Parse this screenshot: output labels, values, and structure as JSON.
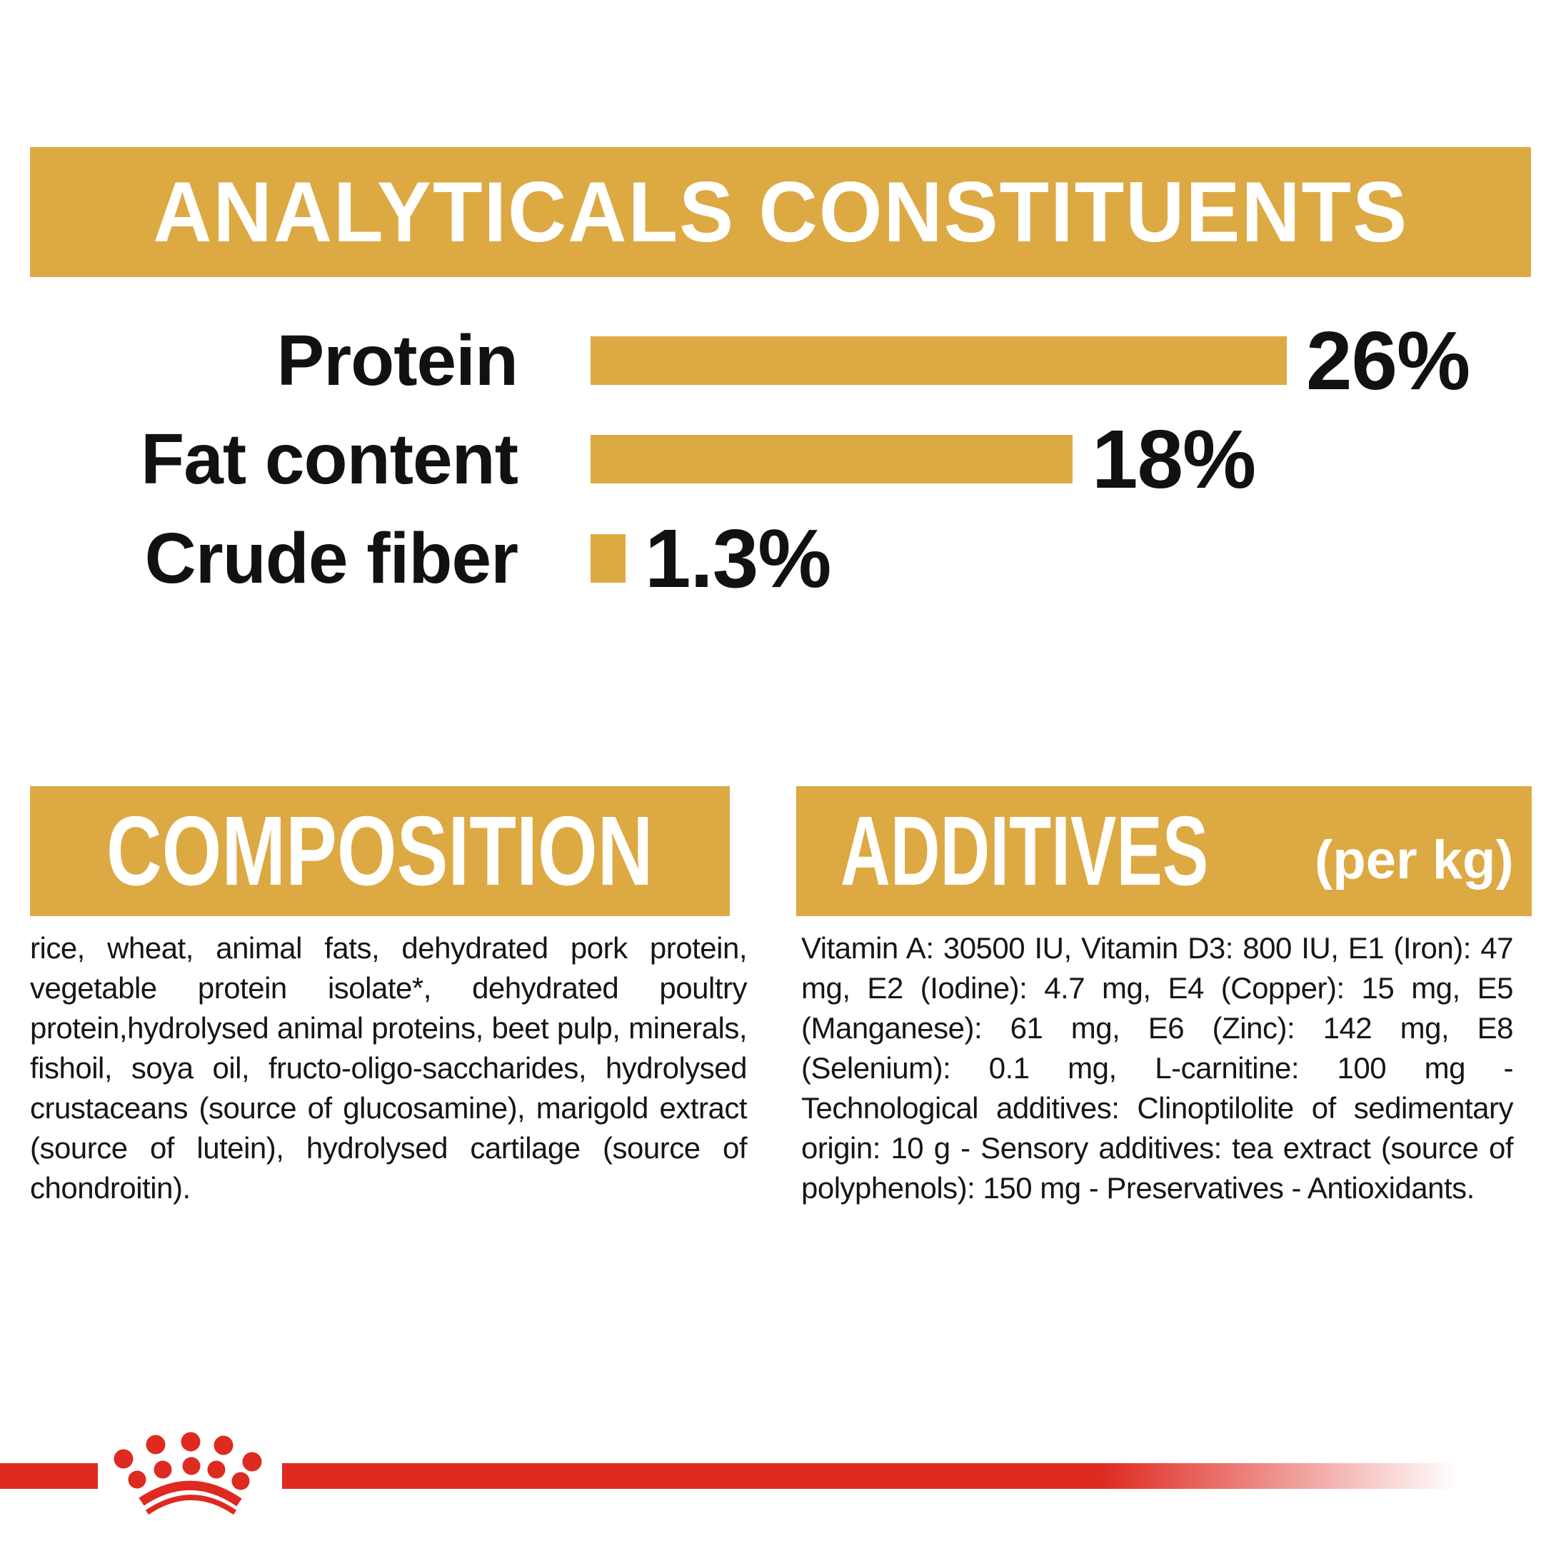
{
  "colors": {
    "gold": "#DDA943",
    "red": "#DE2A20",
    "text": "#161616",
    "banner_text": "#FFFFFF"
  },
  "header": {
    "title": "ANALYTICALS CONSTITUENTS"
  },
  "chart_data": {
    "type": "bar",
    "orientation": "horizontal",
    "title": "ANALYTICALS CONSTITUENTS",
    "categories": [
      "Protein",
      "Fat content",
      "Crude fiber"
    ],
    "values": [
      26,
      18,
      1.3
    ],
    "value_labels": [
      "26%",
      "18%",
      "1.3%"
    ],
    "unit": "percent",
    "xlim": [
      0,
      26
    ],
    "bar_color": "#DDA943",
    "grid": false,
    "legend": "none"
  },
  "composition": {
    "title": "COMPOSITION",
    "body": "rice, wheat, animal fats, dehydrated pork protein, vegetable protein isolate*, dehydrated poultry protein,hydrolysed animal proteins, beet pulp, minerals, fishoil, soya oil, fructo-oligo-saccharides, hydrolysed crustaceans (source of glucosamine), marigold extract (source of lutein), hydrolysed cartilage (source of chondroitin)."
  },
  "additives": {
    "title": "ADDITIVES",
    "subtitle": "(per kg)",
    "body": "Vitamin A: 30500 IU, Vitamin D3: 800 IU, E1 (Iron): 47 mg, E2 (Iodine): 4.7 mg, E4 (Copper): 15 mg, E5 (Manganese): 61 mg, E6 (Zinc): 142 mg, E8 (Selenium): 0.1 mg, L-carnitine: 100 mg - Technological additives: Clinoptilolite of sedimentary origin: 10 g - Sensory additives: tea extract (source of polyphenols): 150 mg - Preservatives - Antioxidants.",
    "last_line": "150 mg - Preservatives - Antioxidants."
  },
  "footer": {
    "brand_logo": "royal-canin-crown"
  }
}
